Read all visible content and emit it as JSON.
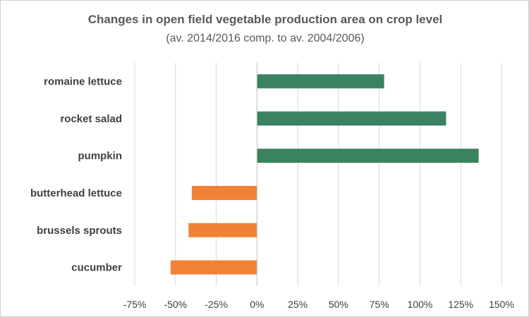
{
  "chart_data": {
    "type": "bar",
    "orientation": "horizontal",
    "title": "Changes in open field vegetable production area on crop level",
    "subtitle": "(av. 2014/2016 comp. to av. 2004/2006)",
    "categories": [
      "romaine lettuce",
      "rocket salad",
      "pumpkin",
      "butterhead lettuce",
      "brussels sprouts",
      "cucumber"
    ],
    "values": [
      78,
      116,
      136,
      -40,
      -42,
      -53
    ],
    "xlim": [
      -75,
      150
    ],
    "xticks": [
      -75,
      -50,
      -25,
      0,
      25,
      50,
      75,
      100,
      125,
      150
    ],
    "tick_labels": [
      "-75%",
      "-50%",
      "-25%",
      "0%",
      "25%",
      "50%",
      "75%",
      "100%",
      "125%",
      "150%"
    ],
    "grid": "vertical",
    "colors": {
      "positive": "#3a8262",
      "negative": "#f08236",
      "grid": "#d9d9d9",
      "zero_line": "#bfbfbf"
    }
  }
}
